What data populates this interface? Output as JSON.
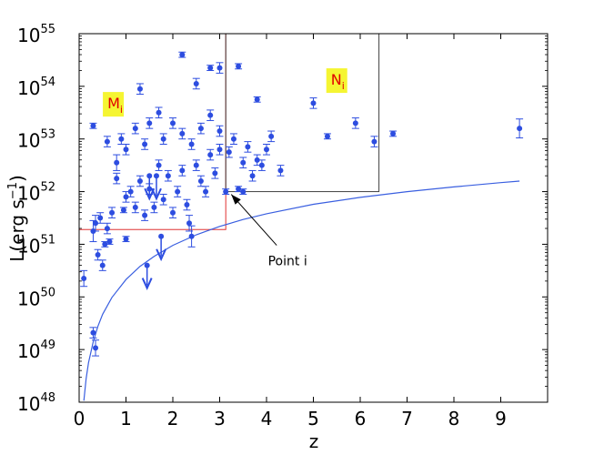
{
  "chart_data": {
    "type": "scatter",
    "title": "",
    "xlabel": "z",
    "ylabel": {
      "base": "L(erg s",
      "sup": "−1",
      "close": ")"
    },
    "xlim": [
      0,
      10
    ],
    "ylim_log10": [
      48,
      55
    ],
    "y_scale": "log",
    "grid": false,
    "x_ticks": [
      {
        "value": 0,
        "label": "0"
      },
      {
        "value": 1,
        "label": "1"
      },
      {
        "value": 2,
        "label": "2"
      },
      {
        "value": 3,
        "label": "3"
      },
      {
        "value": 4,
        "label": "4"
      },
      {
        "value": 5,
        "label": "5"
      },
      {
        "value": 6,
        "label": "6"
      },
      {
        "value": 7,
        "label": "7"
      },
      {
        "value": 8,
        "label": "8"
      },
      {
        "value": 9,
        "label": "9"
      }
    ],
    "y_ticks": [
      {
        "exp": 48,
        "base": "10",
        "sup": "48"
      },
      {
        "exp": 49,
        "base": "10",
        "sup": "49"
      },
      {
        "exp": 50,
        "base": "10",
        "sup": "50"
      },
      {
        "exp": 51,
        "base": "10",
        "sup": "51"
      },
      {
        "exp": 52,
        "base": "10",
        "sup": "52"
      },
      {
        "exp": 53,
        "base": "10",
        "sup": "53"
      },
      {
        "exp": 54,
        "base": "10",
        "sup": "54"
      },
      {
        "exp": 55,
        "base": "10",
        "sup": "55"
      }
    ],
    "colors": {
      "points": "#2d4de0",
      "curve": "#3a5fe0",
      "region_m": "#e03030",
      "region_n": "#404040",
      "label_bg": "#f5f532",
      "label_text": "#e00000"
    },
    "regions": [
      {
        "name": "M",
        "sub": "i",
        "color_key": "region_m",
        "x_min": 0,
        "x_max": 3.13,
        "y_min_log": 51.28,
        "y_max_log": 55
      },
      {
        "name": "N",
        "sub": "i",
        "color_key": "region_n",
        "x_min": 3.13,
        "x_max": 6.4,
        "y_min_log": 52,
        "y_max_log": 55
      }
    ],
    "region_labels": [
      {
        "main": "M",
        "sub": "i",
        "x": 0.72,
        "y_log": 53.65
      },
      {
        "main": "N",
        "sub": "i",
        "x": 5.49,
        "y_log": 54.1
      }
    ],
    "annotation": {
      "text": "Point i",
      "target_x": 3.13,
      "target_y_log": 52,
      "text_x": 4.45,
      "text_y_log": 50.6
    },
    "threshold_curve": [
      {
        "z": 0.1,
        "logL": 48.03
      },
      {
        "z": 0.15,
        "logL": 48.45
      },
      {
        "z": 0.2,
        "logL": 48.75
      },
      {
        "z": 0.3,
        "logL": 49.15
      },
      {
        "z": 0.4,
        "logL": 49.44
      },
      {
        "z": 0.5,
        "logL": 49.67
      },
      {
        "z": 0.7,
        "logL": 49.99
      },
      {
        "z": 1.0,
        "logL": 50.33
      },
      {
        "z": 1.3,
        "logL": 50.58
      },
      {
        "z": 1.6,
        "logL": 50.77
      },
      {
        "z": 2.0,
        "logL": 50.98
      },
      {
        "z": 2.5,
        "logL": 51.18
      },
      {
        "z": 3.0,
        "logL": 51.34
      },
      {
        "z": 3.5,
        "logL": 51.47
      },
      {
        "z": 4.0,
        "logL": 51.58
      },
      {
        "z": 5.0,
        "logL": 51.76
      },
      {
        "z": 6.0,
        "logL": 51.89
      },
      {
        "z": 7.0,
        "logL": 52.0
      },
      {
        "z": 8.0,
        "logL": 52.09
      },
      {
        "z": 9.0,
        "logL": 52.17
      },
      {
        "z": 9.4,
        "logL": 52.2
      }
    ],
    "upper_limits": [
      {
        "z": 1.45,
        "logL": 50.6
      },
      {
        "z": 1.75,
        "logL": 51.15
      },
      {
        "z": 1.5,
        "logL": 52.3
      },
      {
        "z": 1.65,
        "logL": 52.3
      }
    ],
    "points": [
      {
        "z": 0.1,
        "logL": 50.35,
        "err": 0.15
      },
      {
        "z": 0.3,
        "logL": 49.32,
        "err": 0.1
      },
      {
        "z": 0.35,
        "logL": 49.03,
        "err": 0.15
      },
      {
        "z": 0.3,
        "logL": 51.25,
        "err": 0.2
      },
      {
        "z": 0.35,
        "logL": 51.4,
        "err": 0.15
      },
      {
        "z": 0.45,
        "logL": 51.5,
        "err": 0.1
      },
      {
        "z": 0.4,
        "logL": 50.8,
        "err": 0.1
      },
      {
        "z": 0.5,
        "logL": 50.6,
        "err": 0.1
      },
      {
        "z": 0.55,
        "logL": 51.0,
        "err": 0.05
      },
      {
        "z": 0.6,
        "logL": 51.3,
        "err": 0.1
      },
      {
        "z": 0.65,
        "logL": 51.05,
        "err": 0.05
      },
      {
        "z": 0.7,
        "logL": 51.6,
        "err": 0.1
      },
      {
        "z": 0.8,
        "logL": 52.25,
        "err": 0.1
      },
      {
        "z": 0.8,
        "logL": 52.55,
        "err": 0.15
      },
      {
        "z": 0.95,
        "logL": 51.65,
        "err": 0.05
      },
      {
        "z": 1.0,
        "logL": 51.1,
        "err": 0.05
      },
      {
        "z": 1.0,
        "logL": 51.9,
        "err": 0.1
      },
      {
        "z": 1.1,
        "logL": 52.0,
        "err": 0.1
      },
      {
        "z": 1.2,
        "logL": 51.7,
        "err": 0.1
      },
      {
        "z": 1.3,
        "logL": 52.2,
        "err": 0.1
      },
      {
        "z": 1.4,
        "logL": 51.55,
        "err": 0.1
      },
      {
        "z": 1.5,
        "logL": 52.05,
        "err": 0.1
      },
      {
        "z": 1.6,
        "logL": 51.7,
        "err": 0.1
      },
      {
        "z": 1.7,
        "logL": 52.5,
        "err": 0.1
      },
      {
        "z": 1.8,
        "logL": 51.85,
        "err": 0.1
      },
      {
        "z": 1.9,
        "logL": 52.3,
        "err": 0.1
      },
      {
        "z": 2.0,
        "logL": 51.6,
        "err": 0.1
      },
      {
        "z": 2.1,
        "logL": 52.0,
        "err": 0.1
      },
      {
        "z": 2.2,
        "logL": 52.4,
        "err": 0.1
      },
      {
        "z": 2.3,
        "logL": 51.75,
        "err": 0.1
      },
      {
        "z": 2.35,
        "logL": 51.4,
        "err": 0.15
      },
      {
        "z": 2.4,
        "logL": 51.15,
        "err": 0.2
      },
      {
        "z": 2.5,
        "logL": 52.5,
        "err": 0.1
      },
      {
        "z": 2.6,
        "logL": 52.2,
        "err": 0.1
      },
      {
        "z": 2.7,
        "logL": 52.0,
        "err": 0.1
      },
      {
        "z": 2.8,
        "logL": 52.7,
        "err": 0.1
      },
      {
        "z": 2.9,
        "logL": 52.35,
        "err": 0.1
      },
      {
        "z": 3.0,
        "logL": 52.8,
        "err": 0.1
      },
      {
        "z": 0.3,
        "logL": 53.25,
        "err": 0.05
      },
      {
        "z": 0.6,
        "logL": 52.95,
        "err": 0.1
      },
      {
        "z": 0.9,
        "logL": 53.0,
        "err": 0.1
      },
      {
        "z": 1.0,
        "logL": 52.8,
        "err": 0.1
      },
      {
        "z": 1.2,
        "logL": 53.2,
        "err": 0.1
      },
      {
        "z": 1.4,
        "logL": 52.9,
        "err": 0.1
      },
      {
        "z": 1.5,
        "logL": 53.3,
        "err": 0.1
      },
      {
        "z": 1.7,
        "logL": 53.5,
        "err": 0.1
      },
      {
        "z": 1.8,
        "logL": 53.0,
        "err": 0.1
      },
      {
        "z": 2.0,
        "logL": 53.3,
        "err": 0.1
      },
      {
        "z": 2.2,
        "logL": 53.1,
        "err": 0.1
      },
      {
        "z": 2.4,
        "logL": 52.9,
        "err": 0.1
      },
      {
        "z": 2.6,
        "logL": 53.2,
        "err": 0.1
      },
      {
        "z": 2.8,
        "logL": 53.45,
        "err": 0.1
      },
      {
        "z": 3.0,
        "logL": 53.15,
        "err": 0.1
      },
      {
        "z": 1.3,
        "logL": 53.95,
        "err": 0.1
      },
      {
        "z": 2.2,
        "logL": 54.6,
        "err": 0.05
      },
      {
        "z": 2.5,
        "logL": 54.05,
        "err": 0.1
      },
      {
        "z": 2.8,
        "logL": 54.35,
        "err": 0.05
      },
      {
        "z": 3.0,
        "logL": 54.35,
        "err": 0.1
      },
      {
        "z": 3.4,
        "logL": 54.38,
        "err": 0.05
      },
      {
        "z": 3.2,
        "logL": 52.75,
        "err": 0.1
      },
      {
        "z": 3.3,
        "logL": 53.0,
        "err": 0.1
      },
      {
        "z": 3.5,
        "logL": 52.55,
        "err": 0.1
      },
      {
        "z": 3.6,
        "logL": 52.85,
        "err": 0.1
      },
      {
        "z": 3.7,
        "logL": 52.3,
        "err": 0.1
      },
      {
        "z": 3.8,
        "logL": 52.6,
        "err": 0.1
      },
      {
        "z": 3.9,
        "logL": 52.5,
        "err": 0.1
      },
      {
        "z": 4.0,
        "logL": 52.8,
        "err": 0.1
      },
      {
        "z": 4.1,
        "logL": 53.05,
        "err": 0.1
      },
      {
        "z": 4.3,
        "logL": 52.4,
        "err": 0.1
      },
      {
        "z": 3.4,
        "logL": 52.05,
        "err": 0.05
      },
      {
        "z": 3.5,
        "logL": 52.0,
        "err": 0.05
      },
      {
        "z": 3.8,
        "logL": 53.75,
        "err": 0.05
      },
      {
        "z": 5.0,
        "logL": 53.68,
        "err": 0.1
      },
      {
        "z": 5.3,
        "logL": 53.05,
        "err": 0.05
      },
      {
        "z": 5.9,
        "logL": 53.3,
        "err": 0.1
      },
      {
        "z": 6.3,
        "logL": 52.95,
        "err": 0.1
      },
      {
        "z": 6.7,
        "logL": 53.1,
        "err": 0.05
      },
      {
        "z": 9.4,
        "logL": 53.2,
        "err": 0.18
      },
      {
        "z": 3.13,
        "logL": 52.0,
        "err": 0.05
      }
    ]
  }
}
